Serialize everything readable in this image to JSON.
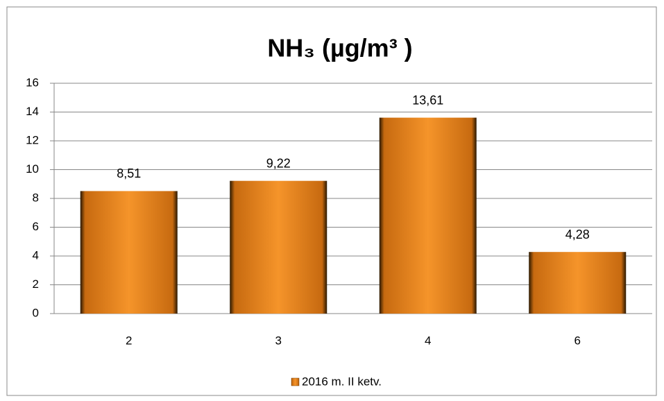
{
  "chart_data": {
    "type": "bar",
    "title": "NH₃ (µg/m³ )",
    "categories": [
      "2",
      "3",
      "4",
      "6"
    ],
    "series": [
      {
        "name": "2016 m. II ketv.",
        "color": "#f5942a",
        "values": [
          8.51,
          9.22,
          13.61,
          4.28
        ],
        "value_labels": [
          "8,51",
          "9,22",
          "13,61",
          "4,28"
        ]
      }
    ],
    "ylim": [
      0,
      16
    ],
    "yticks": [
      0,
      2,
      4,
      6,
      8,
      10,
      12,
      14,
      16
    ],
    "grid": true,
    "legend": "bottom"
  }
}
